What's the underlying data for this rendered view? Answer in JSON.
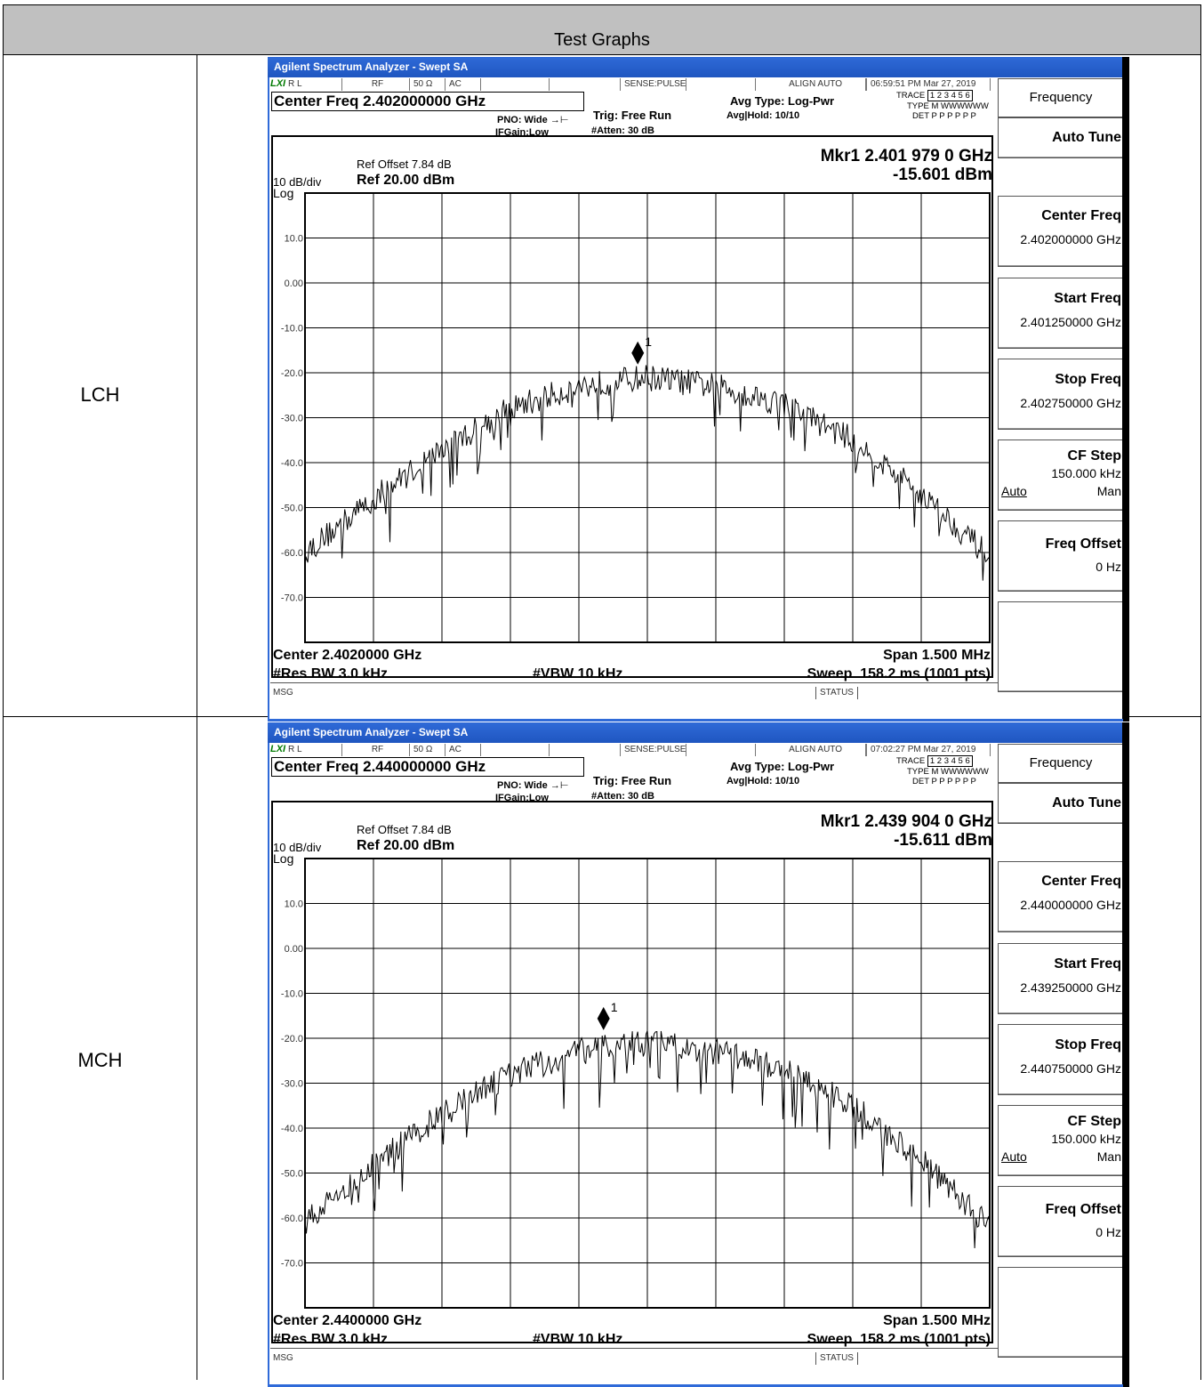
{
  "report": {
    "header": "Test Graphs",
    "rows": [
      "LCH",
      "MCH"
    ]
  },
  "colors": {
    "titlebar": "#2f6ad8",
    "trace": "#000000",
    "grid": "#000000",
    "status_green": "#007a00"
  },
  "screens": [
    {
      "window_title": "Agilent Spectrum Analyzer - Swept SA",
      "status": {
        "lxi": "LXI",
        "rl": "R L",
        "rf": "RF",
        "imp": "50 Ω",
        "coupling": "AC",
        "sense": "SENSE:PULSE",
        "align": "ALIGN AUTO",
        "datetime": "06:59:51 PM Mar 27, 2019"
      },
      "center_freq_label": "Center Freq 2.402000000 GHz",
      "pno": "PNO: Wide",
      "ifgain": "IFGain:Low",
      "trig": "Trig: Free Run",
      "atten": "#Atten: 30 dB",
      "avg_type": "Avg Type: Log-Pwr",
      "avg_hold": "Avg|Hold: 10/10",
      "trace_row": "TRACE",
      "trace_nums": "1 2 3 4 5 6",
      "type_row": "TYPE",
      "type_vals": "M WWWWWW",
      "det_row": "DET",
      "det_vals": "P P P P P P",
      "ref_offset": "Ref Offset 7.84 dB",
      "scale": "10 dB/div",
      "scale_type": "Log",
      "ref_level": "Ref 20.00 dBm",
      "marker_freq": "Mkr1 2.401 979 0 GHz",
      "marker_amp": "-15.601 dBm",
      "marker_label": "1",
      "footer_center": "Center 2.4020000 GHz",
      "footer_rbw": "#Res BW 3.0 kHz",
      "footer_vbw": "#VBW 10 kHz",
      "footer_span": "Span 1.500 MHz",
      "footer_sweep": "Sweep  158.2 ms (1001 pts)",
      "msg": "MSG",
      "status_label": "STATUS",
      "softkeys": {
        "menu": "Frequency",
        "auto_tune": "Auto Tune",
        "center_freq": "Center Freq",
        "center_freq_val": "2.402000000 GHz",
        "start_freq": "Start Freq",
        "start_freq_val": "2.401250000 GHz",
        "stop_freq": "Stop Freq",
        "stop_freq_val": "2.402750000 GHz",
        "cf_step": "CF Step",
        "cf_step_val": "150.000 kHz",
        "cf_auto": "Auto",
        "cf_man": "Man",
        "freq_offset": "Freq Offset",
        "freq_offset_val": "0 Hz"
      }
    },
    {
      "window_title": "Agilent Spectrum Analyzer - Swept SA",
      "status": {
        "lxi": "LXI",
        "rl": "R L",
        "rf": "RF",
        "imp": "50 Ω",
        "coupling": "AC",
        "sense": "SENSE:PULSE",
        "align": "ALIGN AUTO",
        "datetime": "07:02:27 PM Mar 27, 2019"
      },
      "center_freq_label": "Center Freq 2.440000000 GHz",
      "pno": "PNO: Wide",
      "ifgain": "IFGain:Low",
      "trig": "Trig: Free Run",
      "atten": "#Atten: 30 dB",
      "avg_type": "Avg Type: Log-Pwr",
      "avg_hold": "Avg|Hold: 10/10",
      "trace_row": "TRACE",
      "trace_nums": "1 2 3 4 5 6",
      "type_row": "TYPE",
      "type_vals": "M WWWWWW",
      "det_row": "DET",
      "det_vals": "P P P P P P",
      "ref_offset": "Ref Offset 7.84 dB",
      "scale": "10 dB/div",
      "scale_type": "Log",
      "ref_level": "Ref 20.00 dBm",
      "marker_freq": "Mkr1 2.439 904 0 GHz",
      "marker_amp": "-15.611 dBm",
      "marker_label": "1",
      "footer_center": "Center 2.4400000 GHz",
      "footer_rbw": "#Res BW 3.0 kHz",
      "footer_vbw": "#VBW 10 kHz",
      "footer_span": "Span 1.500 MHz",
      "footer_sweep": "Sweep  158.2 ms (1001 pts)",
      "msg": "MSG",
      "status_label": "STATUS",
      "softkeys": {
        "menu": "Frequency",
        "auto_tune": "Auto Tune",
        "center_freq": "Center Freq",
        "center_freq_val": "2.440000000 GHz",
        "start_freq": "Start Freq",
        "start_freq_val": "2.439250000 GHz",
        "stop_freq": "Stop Freq",
        "stop_freq_val": "2.440750000 GHz",
        "cf_step": "CF Step",
        "cf_step_val": "150.000 kHz",
        "cf_auto": "Auto",
        "cf_man": "Man",
        "freq_offset": "Freq Offset",
        "freq_offset_val": "0 Hz"
      }
    }
  ],
  "chart_data": [
    {
      "type": "line",
      "xlim": [
        2.40125,
        2.40275
      ],
      "ylim": [
        -80,
        20
      ],
      "ytick_labels": [
        "10.0",
        "0.00",
        "-10.0",
        "-20.0",
        "-30.0",
        "-40.0",
        "-50.0",
        "-60.0",
        "-70.0"
      ],
      "y_ticks": [
        10,
        0,
        -10,
        -20,
        -30,
        -40,
        -50,
        -60,
        -70
      ],
      "grid": true,
      "marker": {
        "x": 2.401979,
        "y": -15.601
      },
      "series_shape": {
        "x": [
          2.40125,
          2.4014,
          2.40155,
          2.4017,
          2.40185,
          2.402,
          2.40215,
          2.4023,
          2.40245,
          2.4026,
          2.40275
        ],
        "y": [
          -60,
          -48,
          -37,
          -28,
          -23,
          -21,
          -23,
          -27,
          -35,
          -47,
          -61
        ]
      }
    },
    {
      "type": "line",
      "xlim": [
        2.43925,
        2.44075
      ],
      "ylim": [
        -80,
        20
      ],
      "ytick_labels": [
        "10.0",
        "0.00",
        "-10.0",
        "-20.0",
        "-30.0",
        "-40.0",
        "-50.0",
        "-60.0",
        "-70.0"
      ],
      "y_ticks": [
        10,
        0,
        -10,
        -20,
        -30,
        -40,
        -50,
        -60,
        -70
      ],
      "grid": true,
      "marker": {
        "x": 2.439904,
        "y": -15.611
      },
      "series_shape": {
        "x": [
          2.43925,
          2.4394,
          2.43955,
          2.4397,
          2.43985,
          2.44,
          2.44015,
          2.4403,
          2.44045,
          2.4406,
          2.44075
        ],
        "y": [
          -61,
          -48,
          -37,
          -28,
          -23,
          -21,
          -23,
          -27,
          -35,
          -47,
          -62
        ]
      }
    }
  ]
}
